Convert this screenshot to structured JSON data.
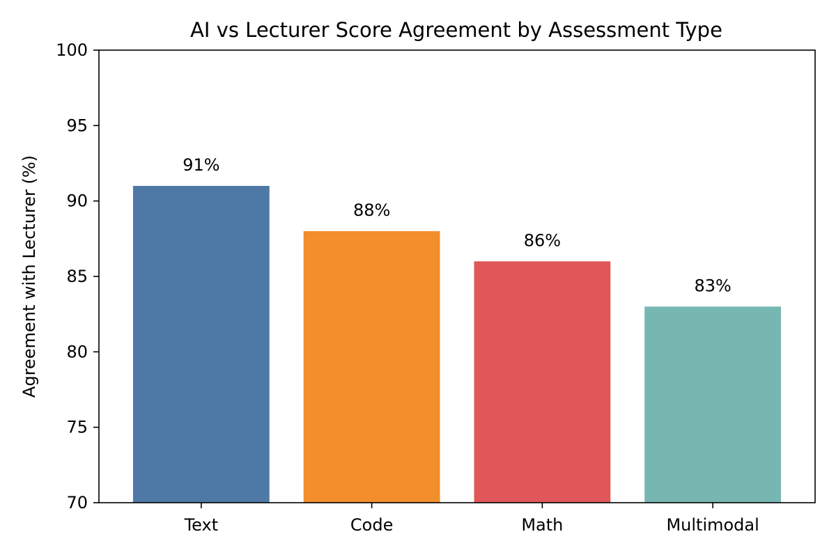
{
  "chart_data": {
    "type": "bar",
    "title": "AI vs Lecturer Score Agreement by Assessment Type",
    "xlabel": "",
    "ylabel": "Agreement with Lecturer (%)",
    "categories": [
      "Text",
      "Code",
      "Math",
      "Multimodal"
    ],
    "values": [
      91,
      88,
      86,
      83
    ],
    "value_labels": [
      "91%",
      "88%",
      "86%",
      "83%"
    ],
    "colors": [
      "#4e79a7",
      "#f28e2b",
      "#e15759",
      "#76b7b2"
    ],
    "ylim": [
      70,
      100
    ],
    "yticks": [
      70,
      75,
      80,
      85,
      90,
      95,
      100
    ],
    "grid": false,
    "legend": "none"
  }
}
